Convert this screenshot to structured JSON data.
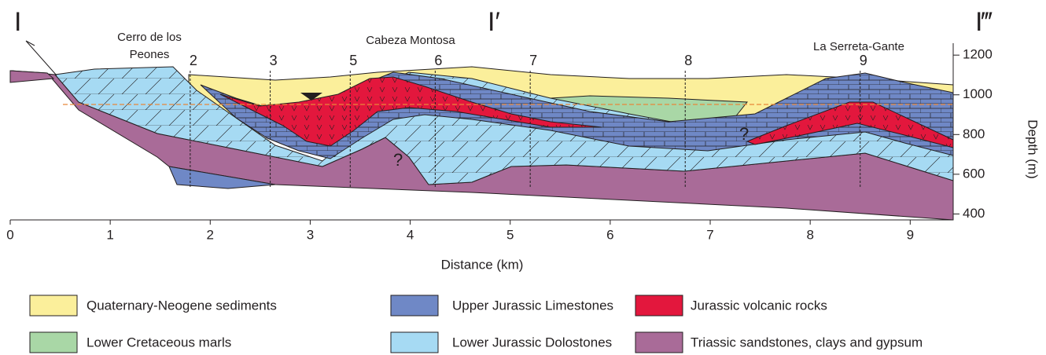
{
  "section_labels": [
    "I",
    "I′",
    "I‴"
  ],
  "places": [
    {
      "lines": [
        "Cerro de los",
        "Peones"
      ]
    },
    {
      "lines": [
        "Cabeza Montosa"
      ]
    },
    {
      "lines": [
        "La Serreta-Gante"
      ]
    }
  ],
  "wells": [
    {
      "label": "2",
      "x": 1.8
    },
    {
      "label": "3",
      "x": 2.6
    },
    {
      "label": "5",
      "x": 3.4
    },
    {
      "label": "6",
      "x": 4.25
    },
    {
      "label": "7",
      "x": 5.2
    },
    {
      "label": "8",
      "x": 6.75
    },
    {
      "label": "9",
      "x": 8.5
    }
  ],
  "annotations": [
    "?",
    "?"
  ],
  "x_axis": {
    "label": "Distance (km)",
    "lim": [
      0,
      9.43
    ],
    "ticks": [
      0,
      1,
      2,
      3,
      4,
      5,
      6,
      7,
      8,
      9
    ]
  },
  "y_axis": {
    "label": "Depth (m)",
    "lim": [
      370,
      1260
    ],
    "ticks": [
      400,
      600,
      800,
      1000,
      1200
    ]
  },
  "legend": [
    {
      "label": "Quaternary-Neogene sediments",
      "color": "#fbef9b"
    },
    {
      "label": "Upper Jurassic Limestones",
      "color": "#6f88c6"
    },
    {
      "label": "Jurassic volcanic rocks",
      "color": "#e3173d"
    },
    {
      "label": "Lower Cretaceous marls",
      "color": "#a9d7a6"
    },
    {
      "label": "Lower Jurassic Dolostones",
      "color": "#a6daf3"
    },
    {
      "label": "Triassic sandstones, clays and gypsum",
      "color": "#a96b98"
    }
  ]
}
